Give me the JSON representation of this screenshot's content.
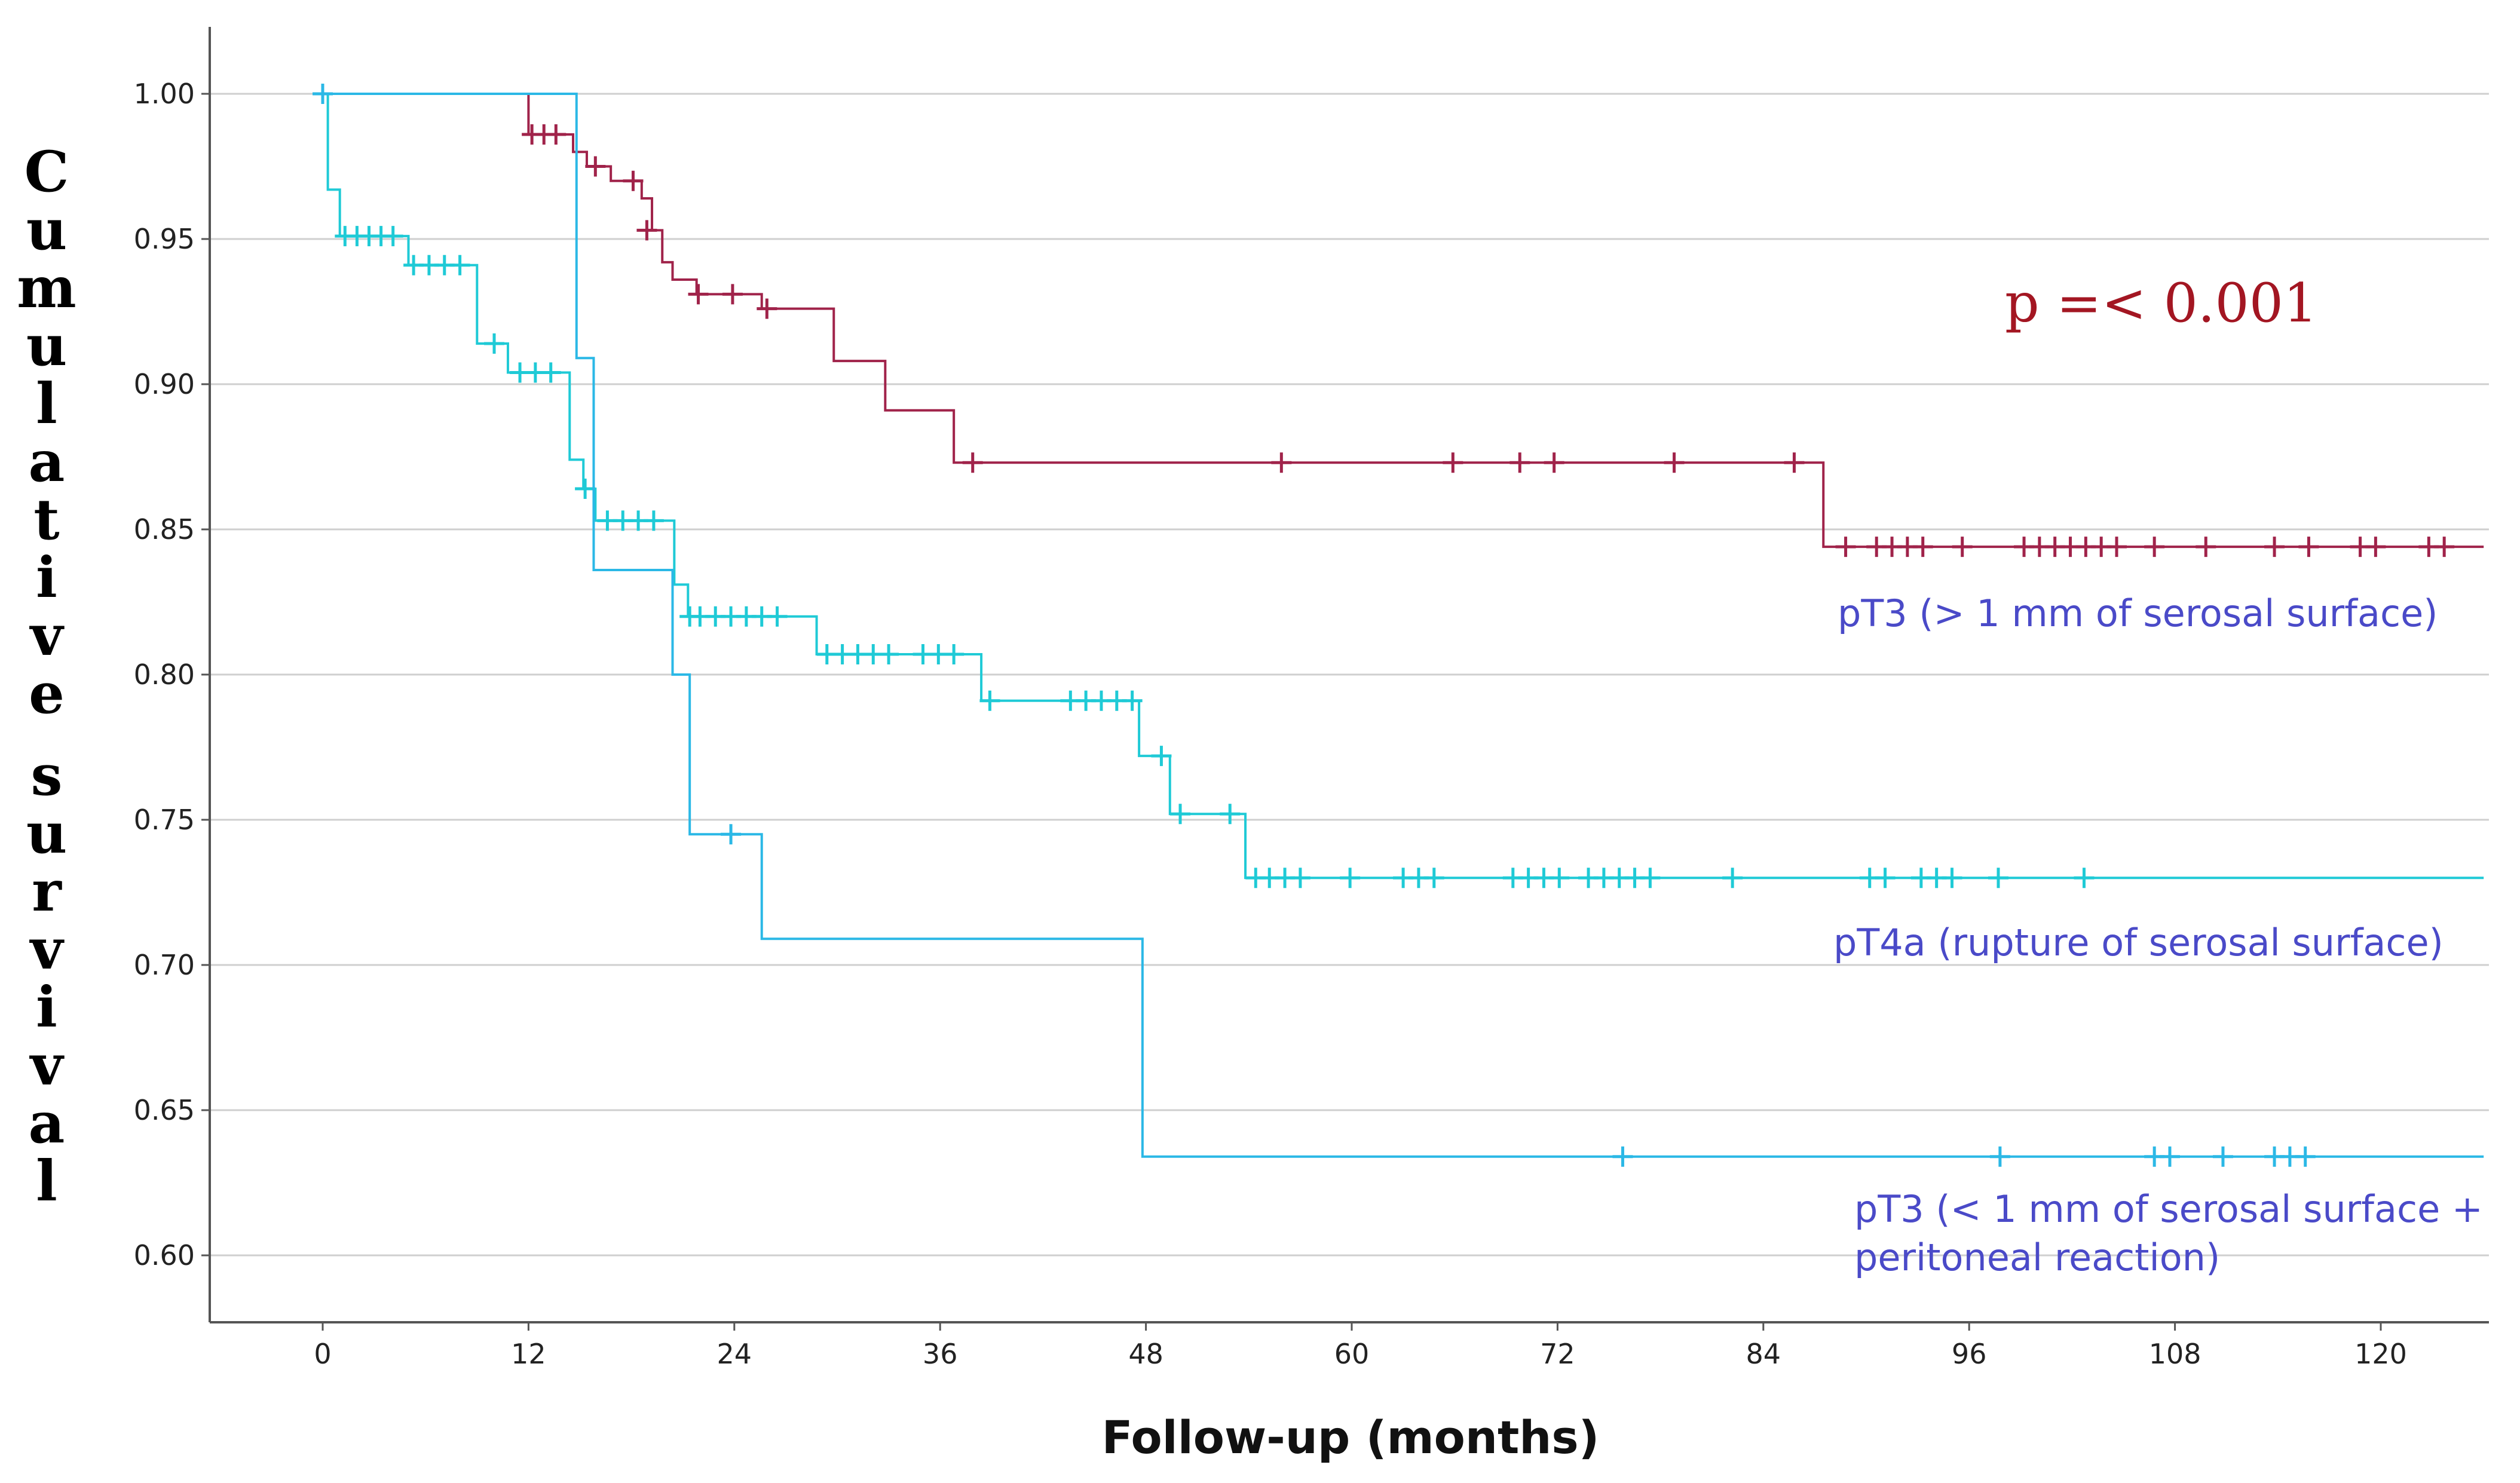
{
  "chart_data": {
    "type": "line",
    "title": "",
    "xlabel": "Follow-up (months)",
    "ylabel": "Cumulative survival",
    "xlim": [
      -12,
      126
    ],
    "ylim": [
      0.579,
      1.022
    ],
    "xticks": [
      0,
      12,
      24,
      36,
      48,
      60,
      72,
      84,
      96,
      108,
      120
    ],
    "yticks": [
      1.0,
      0.95,
      0.9,
      0.85,
      0.8,
      0.75,
      0.7,
      0.65,
      0.6
    ],
    "ytick_labels": [
      "1.00",
      "0.95",
      "0.90",
      "0.85",
      "0.80",
      "0.75",
      "0.70",
      "0.65",
      "0.60"
    ],
    "xtick_labels": [
      "0",
      "12",
      "24",
      "36",
      "48",
      "60",
      "72",
      "84",
      "96",
      "108",
      "120"
    ],
    "grid": true,
    "annotation": "p =< 0.001",
    "series": [
      {
        "name": "pT3 (> 1 mm of serosal surface)",
        "label_lines": [
          "pT3 (> 1 mm of serosal surface)"
        ],
        "color": "#a0234a",
        "label_color": "#4a4ac8",
        "steps": [
          [
            0,
            1.0
          ],
          [
            12,
            0.986
          ],
          [
            14.6,
            0.98
          ],
          [
            15.4,
            0.975
          ],
          [
            16.8,
            0.97
          ],
          [
            18.6,
            0.964
          ],
          [
            19.2,
            0.953
          ],
          [
            19.8,
            0.942
          ],
          [
            20.4,
            0.936
          ],
          [
            21.8,
            0.931
          ],
          [
            25.6,
            0.926
          ],
          [
            29.8,
            0.908
          ],
          [
            32.8,
            0.891
          ],
          [
            36.8,
            0.873
          ],
          [
            87.5,
            0.844
          ]
        ],
        "end_x": 126,
        "censors": [
          [
            0,
            1.0
          ],
          [
            12.2,
            0.986
          ],
          [
            12.9,
            0.986
          ],
          [
            13.6,
            0.986
          ],
          [
            15.9,
            0.975
          ],
          [
            18.1,
            0.97
          ],
          [
            18.9,
            0.953
          ],
          [
            21.9,
            0.931
          ],
          [
            23.9,
            0.931
          ],
          [
            25.9,
            0.926
          ],
          [
            37.9,
            0.873
          ],
          [
            55.9,
            0.873
          ],
          [
            65.9,
            0.873
          ],
          [
            69.8,
            0.873
          ],
          [
            71.8,
            0.873
          ],
          [
            78.8,
            0.873
          ],
          [
            85.8,
            0.873
          ],
          [
            88.8,
            0.844
          ],
          [
            90.6,
            0.844
          ],
          [
            91.5,
            0.844
          ],
          [
            92.4,
            0.844
          ],
          [
            93.3,
            0.844
          ],
          [
            95.6,
            0.844
          ],
          [
            99.2,
            0.844
          ],
          [
            100.1,
            0.844
          ],
          [
            101.0,
            0.844
          ],
          [
            101.9,
            0.844
          ],
          [
            102.8,
            0.844
          ],
          [
            103.7,
            0.844
          ],
          [
            104.6,
            0.844
          ],
          [
            106.8,
            0.844
          ],
          [
            109.8,
            0.844
          ],
          [
            113.8,
            0.844
          ],
          [
            115.8,
            0.844
          ],
          [
            118.8,
            0.844
          ],
          [
            119.7,
            0.844
          ],
          [
            122.8,
            0.844
          ],
          [
            123.7,
            0.844
          ]
        ]
      },
      {
        "name": "pT4a (rupture of serosal surface)",
        "label_lines": [
          "pT4a (rupture of serosal surface)"
        ],
        "color": "#1fcad6",
        "label_color": "#4a4ac8",
        "steps": [
          [
            0,
            1.0
          ],
          [
            0.3,
            0.967
          ],
          [
            1.0,
            0.951
          ],
          [
            5.0,
            0.941
          ],
          [
            9.0,
            0.914
          ],
          [
            10.8,
            0.904
          ],
          [
            14.4,
            0.874
          ],
          [
            15.2,
            0.864
          ],
          [
            15.9,
            0.853
          ],
          [
            20.5,
            0.831
          ],
          [
            21.3,
            0.82
          ],
          [
            28.8,
            0.807
          ],
          [
            38.4,
            0.791
          ],
          [
            47.6,
            0.772
          ],
          [
            49.4,
            0.752
          ],
          [
            53.8,
            0.73
          ]
        ],
        "end_x": 126,
        "censors": [
          [
            1.3,
            0.951
          ],
          [
            2.0,
            0.951
          ],
          [
            2.7,
            0.951
          ],
          [
            3.4,
            0.951
          ],
          [
            4.1,
            0.951
          ],
          [
            5.3,
            0.941
          ],
          [
            6.2,
            0.941
          ],
          [
            7.1,
            0.941
          ],
          [
            8.0,
            0.941
          ],
          [
            10.0,
            0.914
          ],
          [
            11.5,
            0.904
          ],
          [
            12.4,
            0.904
          ],
          [
            13.3,
            0.904
          ],
          [
            15.3,
            0.864
          ],
          [
            16.6,
            0.853
          ],
          [
            17.5,
            0.853
          ],
          [
            18.4,
            0.853
          ],
          [
            19.3,
            0.853
          ],
          [
            21.4,
            0.82
          ],
          [
            22.0,
            0.82
          ],
          [
            22.9,
            0.82
          ],
          [
            23.8,
            0.82
          ],
          [
            24.7,
            0.82
          ],
          [
            25.6,
            0.82
          ],
          [
            26.5,
            0.82
          ],
          [
            29.4,
            0.807
          ],
          [
            30.3,
            0.807
          ],
          [
            31.2,
            0.807
          ],
          [
            32.1,
            0.807
          ],
          [
            33.0,
            0.807
          ],
          [
            35.0,
            0.807
          ],
          [
            35.9,
            0.807
          ],
          [
            36.8,
            0.807
          ],
          [
            38.9,
            0.791
          ],
          [
            43.6,
            0.791
          ],
          [
            44.5,
            0.791
          ],
          [
            45.4,
            0.791
          ],
          [
            46.3,
            0.791
          ],
          [
            47.2,
            0.791
          ],
          [
            48.9,
            0.772
          ],
          [
            50.0,
            0.752
          ],
          [
            52.9,
            0.752
          ],
          [
            54.4,
            0.73
          ],
          [
            55.2,
            0.73
          ],
          [
            56.1,
            0.73
          ],
          [
            57.0,
            0.73
          ],
          [
            59.9,
            0.73
          ],
          [
            63.0,
            0.73
          ],
          [
            63.9,
            0.73
          ],
          [
            64.8,
            0.73
          ],
          [
            69.4,
            0.73
          ],
          [
            70.3,
            0.73
          ],
          [
            71.2,
            0.73
          ],
          [
            72.1,
            0.73
          ],
          [
            73.8,
            0.73
          ],
          [
            74.7,
            0.73
          ],
          [
            75.6,
            0.73
          ],
          [
            76.5,
            0.73
          ],
          [
            77.4,
            0.73
          ],
          [
            82.2,
            0.73
          ],
          [
            90.2,
            0.73
          ],
          [
            91.1,
            0.73
          ],
          [
            93.2,
            0.73
          ],
          [
            94.1,
            0.73
          ],
          [
            95.0,
            0.73
          ],
          [
            97.7,
            0.73
          ],
          [
            102.7,
            0.73
          ]
        ]
      },
      {
        "name": "pT3 (< 1 mm of serosal surface + peritoneal reaction)",
        "label_lines": [
          "pT3 (< 1 mm of serosal surface +",
          "peritoneal reaction)"
        ],
        "color": "#2bb8e6",
        "label_color": "#4a4ac8",
        "steps": [
          [
            0,
            1.0
          ],
          [
            14.8,
            0.909
          ],
          [
            15.8,
            0.836
          ],
          [
            20.4,
            0.8
          ],
          [
            21.4,
            0.745
          ],
          [
            25.6,
            0.709
          ],
          [
            47.8,
            0.634
          ]
        ],
        "end_x": 126,
        "censors": [
          [
            0,
            1.0
          ],
          [
            23.8,
            0.745
          ],
          [
            75.8,
            0.634
          ],
          [
            97.8,
            0.634
          ],
          [
            106.8,
            0.634
          ],
          [
            107.7,
            0.634
          ],
          [
            110.8,
            0.634
          ],
          [
            113.8,
            0.634
          ],
          [
            114.7,
            0.634
          ],
          [
            115.6,
            0.634
          ]
        ]
      }
    ]
  }
}
